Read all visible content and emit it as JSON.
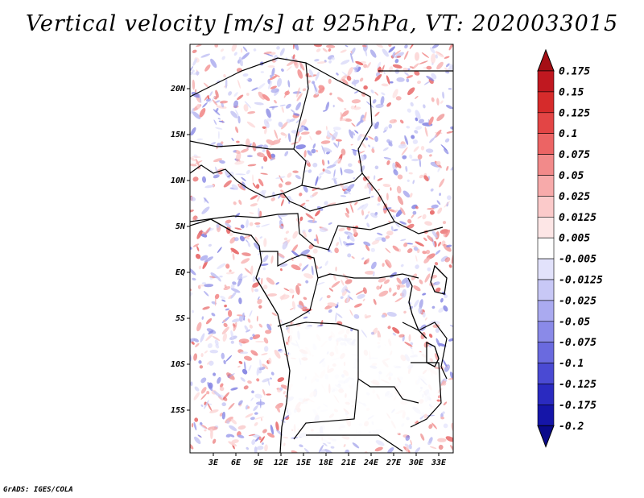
{
  "title": "Vertical velocity [m/s] at 925hPa, VT: 2020033015",
  "credit": "GrADS: IGES/COLA",
  "map": {
    "lat_ticks": [
      "20N",
      "15N",
      "10N",
      "5N",
      "EQ",
      "5S",
      "10S",
      "15S"
    ],
    "lon_ticks": [
      "3E",
      "6E",
      "9E",
      "12E",
      "15E",
      "18E",
      "21E",
      "24E",
      "27E",
      "30E",
      "33E"
    ],
    "field": "Vertical velocity at 925hPa",
    "colors": {
      "positive": "#e34a4a",
      "negative": "#5a5ae6",
      "coastline": "#000000"
    }
  },
  "colorbar": {
    "labels": [
      "0.175",
      "0.15",
      "0.125",
      "0.1",
      "0.075",
      "0.05",
      "0.025",
      "0.0125",
      "0.005",
      "-0.005",
      "-0.0125",
      "-0.025",
      "-0.05",
      "-0.075",
      "-0.1",
      "-0.125",
      "-0.175",
      "-0.2"
    ],
    "colors": [
      "#a50f15",
      "#c01820",
      "#d62b2b",
      "#e34545",
      "#ec6464",
      "#f28a8a",
      "#f7aaaa",
      "#fbcaca",
      "#fde6e6",
      "#ffffff",
      "#e2e2fb",
      "#c8c8f6",
      "#aaaaf0",
      "#8a8ae8",
      "#6a6adf",
      "#4a4ad3",
      "#2a2ac0",
      "#1515a8",
      "#0a0a8a"
    ]
  }
}
